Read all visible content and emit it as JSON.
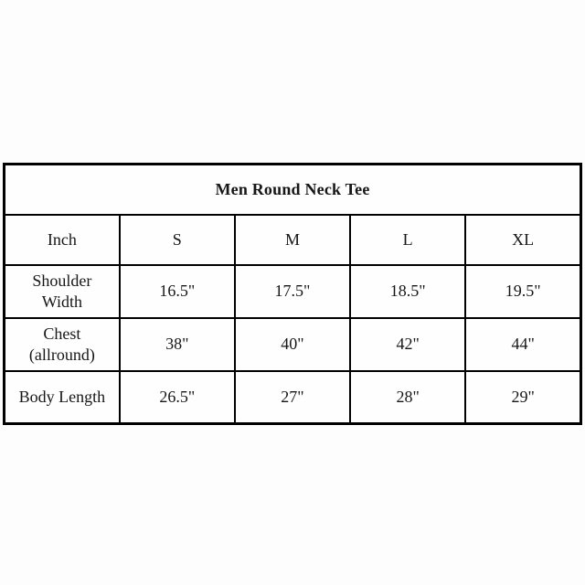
{
  "chart_data": {
    "type": "table",
    "title": "Men Round Neck Tee",
    "unit_label": "Inch",
    "columns": [
      "Inch",
      "S",
      "M",
      "L",
      "XL"
    ],
    "rows": [
      {
        "label": "Shoulder Width",
        "values": [
          "16.5\"",
          "17.5\"",
          "18.5\"",
          "19.5\""
        ]
      },
      {
        "label": "Chest (allround)",
        "values": [
          "38\"",
          "40\"",
          "42\"",
          "44\""
        ]
      },
      {
        "label": "Body Length",
        "values": [
          "26.5\"",
          "27\"",
          "28\"",
          "29\""
        ]
      }
    ],
    "layout": {
      "columns_count": 5,
      "title_spans_all_columns": true
    },
    "colors": {
      "border": "#000000",
      "background": "#fefefe",
      "text": "#161616"
    }
  }
}
